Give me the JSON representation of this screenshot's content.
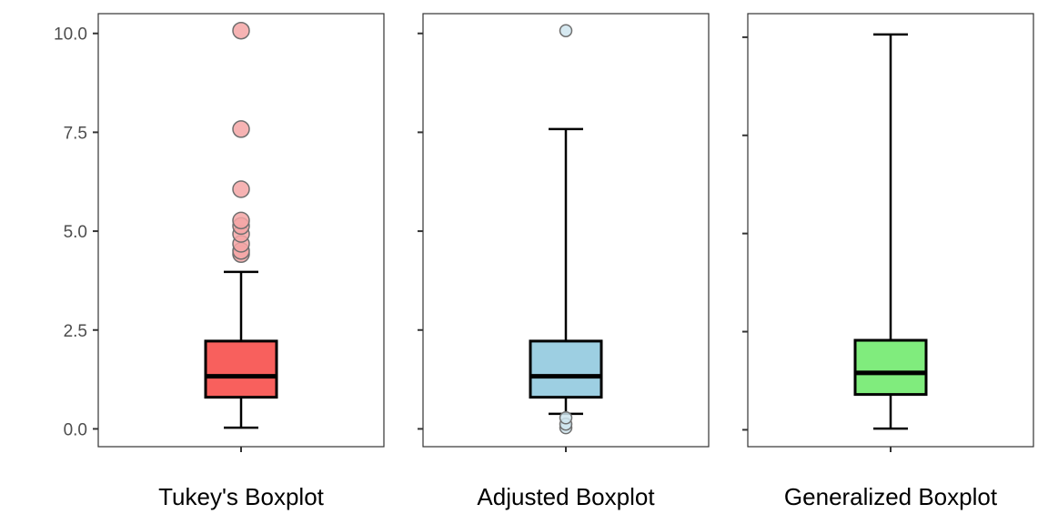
{
  "chart_data": {
    "type": "boxplot",
    "y_ticks": [
      {
        "value": 0.0,
        "label": "0.0"
      },
      {
        "value": 2.5,
        "label": "2.5"
      },
      {
        "value": 5.0,
        "label": "5.0"
      },
      {
        "value": 7.5,
        "label": "7.5"
      },
      {
        "value": 10.0,
        "label": "10.0"
      }
    ],
    "panels": [
      {
        "title": "Tukey's Boxplot",
        "ylim": [
          -0.45,
          10.5
        ],
        "show_tick_labels": true,
        "fill": "#f8605d",
        "outlier_fill": "#f4a6a6",
        "q1": 0.8,
        "median": 1.33,
        "q3": 2.22,
        "whisker_low": 0.03,
        "whisker_high": 3.97,
        "outliers": [
          4.42,
          4.5,
          4.68,
          4.93,
          5.13,
          5.27,
          6.06,
          7.58,
          10.07
        ]
      },
      {
        "title": "Adjusted Boxplot",
        "ylim": [
          -0.45,
          10.5
        ],
        "show_tick_labels": false,
        "fill": "#9dcfe2",
        "outlier_fill": "#cfe5ee",
        "q1": 0.8,
        "median": 1.33,
        "q3": 2.22,
        "whisker_low": 0.38,
        "whisker_high": 7.58,
        "outliers": [
          0.03,
          0.12,
          0.28,
          10.07
        ]
      },
      {
        "title": "Generalized Boxplot",
        "ylim": [
          -0.43,
          10.6
        ],
        "show_tick_labels": false,
        "fill": "#80ec7d",
        "outlier_fill": "#c8f5c6",
        "q1": 0.9,
        "median": 1.45,
        "q3": 2.28,
        "whisker_low": 0.03,
        "whisker_high": 10.07,
        "outliers": []
      }
    ]
  }
}
